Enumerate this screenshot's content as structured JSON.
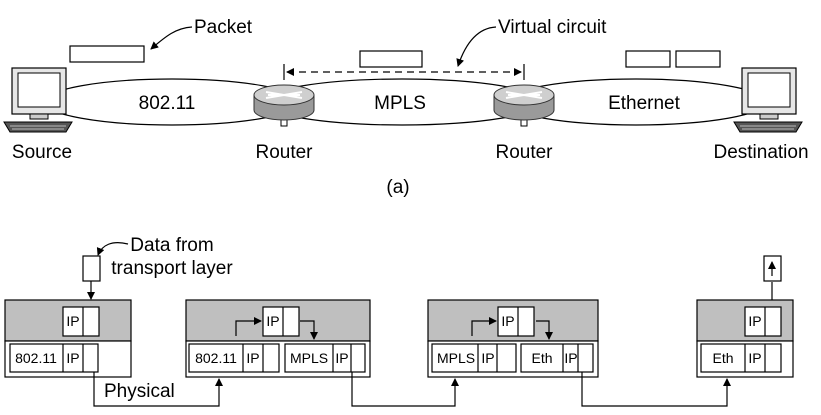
{
  "part_a": {
    "packet_label": "Packet",
    "virtual_circuit_label": "Virtual circuit",
    "network_labels": [
      "802.11",
      "MPLS",
      "Ethernet"
    ],
    "source_label": "Source",
    "router1_label": "Router",
    "router2_label": "Router",
    "destination_label": "Destination",
    "caption": "(a)"
  },
  "part_b": {
    "data_label_line1": "Data from",
    "data_label_line2": "transport layer",
    "physical_label": "Physical",
    "source_stack": {
      "top": "IP",
      "bottom": [
        "802.11",
        "IP"
      ]
    },
    "router1_stack": {
      "top": "IP",
      "left": [
        "802.11",
        "IP"
      ],
      "right": [
        "MPLS",
        "IP"
      ]
    },
    "router2_stack": {
      "top": "IP",
      "left": [
        "MPLS",
        "IP"
      ],
      "right": [
        "Eth",
        "IP"
      ]
    },
    "dest_stack": {
      "top": "IP",
      "bottom": [
        "Eth",
        "IP"
      ]
    }
  },
  "colors": {
    "layer_fill": "#bfbfbf",
    "stroke": "#000000"
  }
}
